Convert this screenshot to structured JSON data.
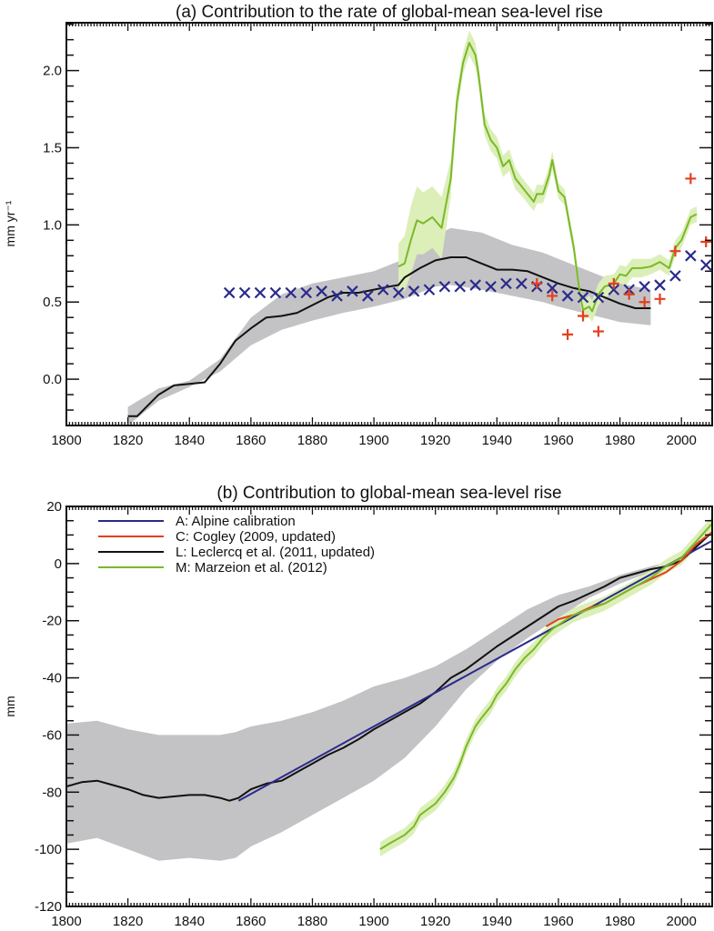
{
  "chart_data": [
    {
      "type": "line",
      "title": "(a) Contribution to the rate of global-mean sea-level rise",
      "ylabel": "mm yr⁻¹",
      "xlabel": "",
      "xlim": [
        1800,
        2010
      ],
      "ylim": [
        -0.3,
        2.31
      ],
      "xticks": [
        1800,
        1820,
        1840,
        1860,
        1880,
        1900,
        1920,
        1940,
        1960,
        1980,
        2000
      ],
      "yticks": [
        0.0,
        0.5,
        1.0,
        1.5,
        2.0
      ],
      "ytick_labels": [
        "0.0",
        "0.5",
        "1.0",
        "1.5",
        "2.0"
      ],
      "grid": false,
      "series": [
        {
          "key": "L",
          "style": "line",
          "color": "#111111",
          "band_color": "#c3c3c5",
          "x": [
            1820,
            1823,
            1830,
            1835,
            1840,
            1845,
            1850,
            1855,
            1860,
            1865,
            1870,
            1875,
            1880,
            1885,
            1890,
            1895,
            1900,
            1905,
            1908,
            1910,
            1915,
            1920,
            1925,
            1930,
            1935,
            1940,
            1945,
            1950,
            1955,
            1960,
            1965,
            1970,
            1975,
            1980,
            1985,
            1990
          ],
          "y": [
            -0.24,
            -0.24,
            -0.1,
            -0.04,
            -0.03,
            -0.02,
            0.1,
            0.25,
            0.33,
            0.4,
            0.41,
            0.43,
            0.48,
            0.53,
            0.56,
            0.56,
            0.58,
            0.6,
            0.61,
            0.66,
            0.72,
            0.77,
            0.79,
            0.79,
            0.75,
            0.71,
            0.71,
            0.7,
            0.66,
            0.62,
            0.59,
            0.57,
            0.53,
            0.49,
            0.46,
            0.46
          ],
          "band_x": [
            1820,
            1830,
            1840,
            1850,
            1860,
            1870,
            1880,
            1890,
            1900,
            1910,
            1920,
            1925,
            1935,
            1945,
            1955,
            1960,
            1970,
            1980,
            1990
          ],
          "band_upper": [
            -0.18,
            -0.06,
            -0.01,
            0.13,
            0.4,
            0.55,
            0.62,
            0.66,
            0.7,
            0.78,
            0.93,
            0.98,
            0.95,
            0.87,
            0.82,
            0.78,
            0.7,
            0.62,
            0.58
          ],
          "band_lower": [
            -0.3,
            -0.14,
            -0.05,
            0.05,
            0.22,
            0.32,
            0.38,
            0.43,
            0.47,
            0.52,
            0.6,
            0.61,
            0.58,
            0.54,
            0.5,
            0.47,
            0.42,
            0.37,
            0.35
          ]
        },
        {
          "key": "M",
          "style": "line",
          "color": "#7ab929",
          "band_color": "#dcefb8",
          "x": [
            1908,
            1910,
            1912,
            1914,
            1916,
            1919,
            1922,
            1925,
            1927,
            1929,
            1931,
            1933,
            1934,
            1936,
            1938,
            1940,
            1942,
            1944,
            1946,
            1948,
            1950,
            1952,
            1953,
            1955,
            1957,
            1958,
            1960,
            1962,
            1965,
            1967,
            1968,
            1970,
            1971,
            1973,
            1975,
            1978,
            1980,
            1982,
            1984,
            1987,
            1990,
            1993,
            1996,
            1998,
            2000,
            2003,
            2005
          ],
          "y": [
            0.73,
            0.75,
            0.9,
            1.03,
            1.01,
            1.05,
            0.98,
            1.3,
            1.8,
            2.05,
            2.18,
            2.1,
            1.98,
            1.65,
            1.55,
            1.5,
            1.38,
            1.42,
            1.3,
            1.25,
            1.2,
            1.15,
            1.2,
            1.2,
            1.32,
            1.42,
            1.22,
            1.18,
            0.85,
            0.55,
            0.45,
            0.47,
            0.44,
            0.55,
            0.6,
            0.62,
            0.68,
            0.67,
            0.72,
            0.72,
            0.73,
            0.76,
            0.72,
            0.85,
            0.9,
            1.05,
            1.07
          ],
          "band_halfwidth": [
            0.15,
            0.18,
            0.22,
            0.22,
            0.2,
            0.2,
            0.2,
            0.12,
            0.08,
            0.07,
            0.08,
            0.08,
            0.07,
            0.07,
            0.07,
            0.07,
            0.07,
            0.07,
            0.07,
            0.06,
            0.06,
            0.06,
            0.06,
            0.06,
            0.06,
            0.06,
            0.05,
            0.05,
            0.05,
            0.05,
            0.06,
            0.07,
            0.07,
            0.07,
            0.07,
            0.06,
            0.06,
            0.06,
            0.06,
            0.06,
            0.05,
            0.05,
            0.05,
            0.05,
            0.05,
            0.05,
            0.05
          ]
        },
        {
          "key": "A",
          "style": "x-marker",
          "color": "#2b2a8c",
          "x": [
            1853,
            1858,
            1863,
            1868,
            1873,
            1878,
            1883,
            1888,
            1893,
            1898,
            1903,
            1908,
            1913,
            1918,
            1923,
            1928,
            1933,
            1938,
            1943,
            1948,
            1953,
            1958,
            1963,
            1968,
            1973,
            1978,
            1983,
            1988,
            1993,
            1998,
            2003,
            2008
          ],
          "y": [
            0.56,
            0.56,
            0.56,
            0.56,
            0.56,
            0.56,
            0.57,
            0.54,
            0.57,
            0.54,
            0.58,
            0.56,
            0.57,
            0.58,
            0.6,
            0.6,
            0.61,
            0.6,
            0.62,
            0.62,
            0.6,
            0.59,
            0.54,
            0.53,
            0.53,
            0.58,
            0.58,
            0.6,
            0.61,
            0.67,
            0.8,
            0.74
          ]
        },
        {
          "key": "C",
          "style": "plus-marker",
          "color": "#e2401f",
          "x": [
            1953,
            1958,
            1963,
            1968,
            1973,
            1978,
            1983,
            1988,
            1993,
            1998,
            2003,
            2008
          ],
          "y": [
            0.62,
            0.54,
            0.29,
            0.41,
            0.31,
            0.62,
            0.55,
            0.5,
            0.52,
            0.83,
            1.3,
            0.89
          ]
        }
      ]
    },
    {
      "type": "line",
      "title": "(b) Contribution to global-mean sea-level rise",
      "ylabel": "mm",
      "xlabel": "",
      "xlim": [
        1800,
        2010
      ],
      "ylim": [
        -120,
        20
      ],
      "xticks": [
        1800,
        1820,
        1840,
        1860,
        1880,
        1900,
        1920,
        1940,
        1960,
        1980,
        2000
      ],
      "yticks": [
        -120,
        -100,
        -80,
        -60,
        -40,
        -20,
        0,
        20
      ],
      "ytick_labels": [
        "-120",
        "-100",
        "-80",
        "-60",
        "-40",
        "-20",
        "0",
        "20"
      ],
      "grid": false,
      "legend_position": "top-left",
      "legend": [
        {
          "key": "A",
          "label": "A: Alpine calibration",
          "color": "#2b2a8c"
        },
        {
          "key": "C",
          "label": "C: Cogley (2009, updated)",
          "color": "#e2401f"
        },
        {
          "key": "L",
          "label": "L: Leclercq et al. (2011, updated)",
          "color": "#111111"
        },
        {
          "key": "M",
          "label": "M: Marzeion et al. (2012)",
          "color": "#7ab929"
        }
      ],
      "series": [
        {
          "key": "L",
          "color": "#111111",
          "band_color": "#c3c3c5",
          "x": [
            1800,
            1805,
            1810,
            1815,
            1820,
            1825,
            1830,
            1835,
            1840,
            1845,
            1850,
            1853,
            1856,
            1860,
            1865,
            1870,
            1875,
            1880,
            1885,
            1890,
            1895,
            1900,
            1905,
            1910,
            1915,
            1920,
            1925,
            1930,
            1935,
            1940,
            1945,
            1950,
            1955,
            1960,
            1965,
            1970,
            1975,
            1980,
            1985,
            1990,
            1995,
            2000,
            2005,
            2009
          ],
          "y": [
            -78,
            -76.5,
            -76,
            -77.5,
            -79,
            -81,
            -82,
            -81.5,
            -81,
            -81,
            -82,
            -83,
            -82,
            -79,
            -77,
            -76,
            -73,
            -70,
            -67,
            -64.5,
            -61.5,
            -58,
            -55,
            -52,
            -49,
            -45,
            -40,
            -37,
            -33,
            -29,
            -25.5,
            -22,
            -18.5,
            -15,
            -13,
            -10.5,
            -8,
            -5,
            -3.5,
            -2,
            -1,
            1,
            6,
            10
          ],
          "band_x": [
            1800,
            1810,
            1820,
            1830,
            1840,
            1850,
            1855,
            1860,
            1870,
            1880,
            1890,
            1900,
            1910,
            1920,
            1930,
            1940,
            1950,
            1960,
            1970,
            1980,
            1990,
            2000
          ],
          "band_upper": [
            -56,
            -55,
            -58,
            -60,
            -60,
            -60,
            -59,
            -57,
            -55,
            -52,
            -48,
            -43,
            -40,
            -36,
            -30,
            -23,
            -16,
            -11,
            -8,
            -4,
            -1,
            2
          ],
          "band_lower": [
            -98,
            -96,
            -100,
            -104,
            -103,
            -104,
            -103,
            -99,
            -94,
            -88,
            -82,
            -76,
            -68,
            -57,
            -44,
            -34,
            -26,
            -19,
            -12,
            -7,
            -3,
            0
          ]
        },
        {
          "key": "A",
          "color": "#2b2a8c",
          "x": [
            1856,
            2010
          ],
          "y": [
            -83,
            8
          ]
        },
        {
          "key": "C",
          "color": "#e2401f",
          "x": [
            1956,
            1960,
            1965,
            1970,
            1975,
            1980,
            1985,
            1990,
            1995,
            2000,
            2005,
            2010
          ],
          "y": [
            -22,
            -19.5,
            -18,
            -15.5,
            -14,
            -11,
            -8,
            -5.5,
            -3,
            1,
            7,
            11
          ]
        },
        {
          "key": "M",
          "color": "#7ab929",
          "band_color": "#dcefb8",
          "x": [
            1902,
            1905,
            1910,
            1913,
            1915,
            1920,
            1923,
            1926,
            1928,
            1930,
            1933,
            1935,
            1938,
            1940,
            1943,
            1946,
            1949,
            1952,
            1955,
            1958,
            1962,
            1965,
            1970,
            1975,
            1980,
            1985,
            1990,
            1995,
            2000,
            2005,
            2010
          ],
          "y": [
            -100,
            -98,
            -95,
            -92,
            -88,
            -84,
            -80,
            -75,
            -70,
            -64,
            -57,
            -54,
            -50,
            -46,
            -42,
            -37,
            -33,
            -30,
            -26,
            -23,
            -20,
            -18,
            -16,
            -14,
            -11,
            -8,
            -5,
            -1,
            2,
            8,
            14
          ],
          "band_halfwidth": 2.5
        }
      ]
    }
  ]
}
